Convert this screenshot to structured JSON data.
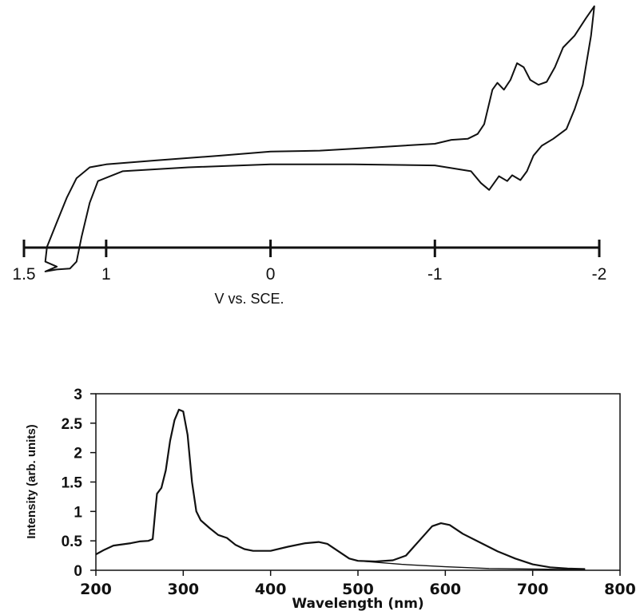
{
  "chart_data": [
    {
      "type": "line",
      "title": "",
      "xlabel": "V vs. SCE.",
      "ylabel": "",
      "x_ticks": [
        "1.5",
        "1",
        "0",
        "-1",
        "-2"
      ],
      "x_tick_values": [
        1.5,
        1,
        0,
        -1,
        -2
      ],
      "xlim": [
        1.5,
        -2
      ],
      "ylim": [
        -1.4,
        1.5
      ],
      "x_direction": "reversed",
      "grid": false,
      "series": [
        {
          "points": [
            [
              1.3,
              -1.25
            ],
            [
              1.37,
              -1.2
            ],
            [
              1.36,
              -1.05
            ],
            [
              1.3,
              -0.8
            ],
            [
              1.24,
              -0.55
            ],
            [
              1.18,
              -0.35
            ],
            [
              1.1,
              -0.24
            ],
            [
              1.0,
              -0.21
            ],
            [
              0.7,
              -0.17
            ],
            [
              0.3,
              -0.12
            ],
            [
              0.0,
              -0.08
            ],
            [
              -0.3,
              -0.07
            ],
            [
              -0.5,
              -0.05
            ],
            [
              -0.7,
              -0.03
            ],
            [
              -1.0,
              0.0
            ],
            [
              -1.1,
              0.04
            ],
            [
              -1.2,
              0.05
            ],
            [
              -1.26,
              0.1
            ],
            [
              -1.3,
              0.2
            ],
            [
              -1.35,
              0.55
            ],
            [
              -1.38,
              0.62
            ],
            [
              -1.42,
              0.55
            ],
            [
              -1.46,
              0.65
            ],
            [
              -1.5,
              0.82
            ],
            [
              -1.54,
              0.78
            ],
            [
              -1.58,
              0.65
            ],
            [
              -1.63,
              0.6
            ],
            [
              -1.68,
              0.63
            ],
            [
              -1.73,
              0.78
            ],
            [
              -1.78,
              0.98
            ],
            [
              -1.85,
              1.1
            ],
            [
              -1.92,
              1.28
            ],
            [
              -1.97,
              1.4
            ],
            [
              -1.95,
              1.1
            ],
            [
              -1.9,
              0.6
            ],
            [
              -1.85,
              0.35
            ],
            [
              -1.8,
              0.15
            ],
            [
              -1.72,
              0.05
            ],
            [
              -1.65,
              -0.02
            ],
            [
              -1.6,
              -0.12
            ],
            [
              -1.56,
              -0.28
            ],
            [
              -1.52,
              -0.37
            ],
            [
              -1.47,
              -0.32
            ],
            [
              -1.44,
              -0.38
            ],
            [
              -1.39,
              -0.33
            ],
            [
              -1.33,
              -0.47
            ],
            [
              -1.28,
              -0.4
            ],
            [
              -1.22,
              -0.28
            ],
            [
              -1.0,
              -0.22
            ],
            [
              -0.5,
              -0.21
            ],
            [
              0.0,
              -0.21
            ],
            [
              0.5,
              -0.24
            ],
            [
              0.9,
              -0.28
            ],
            [
              1.05,
              -0.38
            ],
            [
              1.1,
              -0.6
            ],
            [
              1.15,
              -0.95
            ],
            [
              1.18,
              -1.2
            ],
            [
              1.22,
              -1.27
            ],
            [
              1.3,
              -1.28
            ],
            [
              1.37,
              -1.3
            ]
          ]
        }
      ]
    },
    {
      "type": "line",
      "title": "",
      "xlabel": "Wavelength (nm)",
      "ylabel": "Intensity (arb. units)",
      "x_ticks": [
        "200",
        "300",
        "400",
        "500",
        "600",
        "700",
        "800"
      ],
      "y_ticks": [
        "0",
        "0.5",
        "1",
        "1.5",
        "2",
        "2.5",
        "3"
      ],
      "xlim": [
        200,
        800
      ],
      "ylim": [
        0,
        3
      ],
      "grid": false,
      "series": [
        {
          "points": [
            [
              200,
              0.27
            ],
            [
              210,
              0.35
            ],
            [
              220,
              0.42
            ],
            [
              230,
              0.44
            ],
            [
              240,
              0.46
            ],
            [
              250,
              0.49
            ],
            [
              260,
              0.5
            ],
            [
              265,
              0.53
            ],
            [
              268,
              1.0
            ],
            [
              270,
              1.3
            ],
            [
              275,
              1.4
            ],
            [
              280,
              1.7
            ],
            [
              285,
              2.2
            ],
            [
              290,
              2.55
            ],
            [
              295,
              2.73
            ],
            [
              300,
              2.7
            ],
            [
              305,
              2.3
            ],
            [
              310,
              1.5
            ],
            [
              315,
              1.0
            ],
            [
              320,
              0.85
            ],
            [
              330,
              0.72
            ],
            [
              340,
              0.6
            ],
            [
              350,
              0.55
            ],
            [
              360,
              0.43
            ],
            [
              370,
              0.36
            ],
            [
              380,
              0.33
            ],
            [
              400,
              0.33
            ],
            [
              420,
              0.4
            ],
            [
              440,
              0.46
            ],
            [
              455,
              0.48
            ],
            [
              465,
              0.45
            ],
            [
              480,
              0.3
            ],
            [
              490,
              0.2
            ],
            [
              500,
              0.16
            ],
            [
              520,
              0.15
            ],
            [
              540,
              0.17
            ],
            [
              555,
              0.25
            ],
            [
              570,
              0.5
            ],
            [
              585,
              0.75
            ],
            [
              595,
              0.8
            ],
            [
              605,
              0.77
            ],
            [
              620,
              0.62
            ],
            [
              640,
              0.47
            ],
            [
              660,
              0.32
            ],
            [
              680,
              0.2
            ],
            [
              700,
              0.1
            ],
            [
              720,
              0.05
            ],
            [
              740,
              0.03
            ],
            [
              760,
              0.02
            ]
          ]
        },
        {
          "points": [
            [
              500,
              0.16
            ],
            [
              550,
              0.1
            ],
            [
              600,
              0.06
            ],
            [
              650,
              0.03
            ],
            [
              700,
              0.02
            ],
            [
              760,
              0.01
            ]
          ]
        }
      ]
    }
  ]
}
